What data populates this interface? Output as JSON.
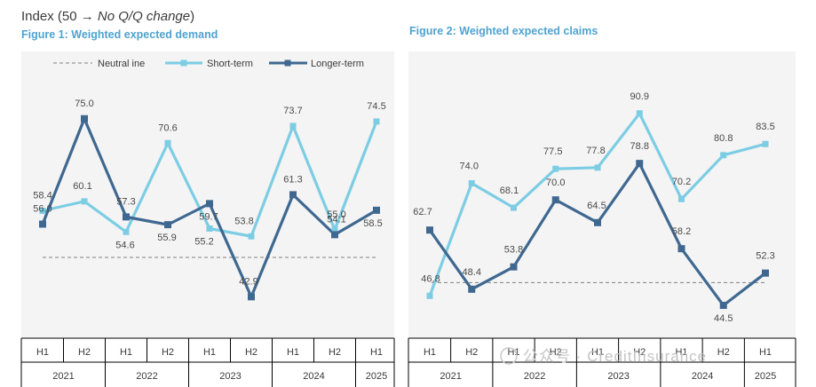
{
  "header": {
    "prefix": "Index (50 → ",
    "italic": "No Q/Q change",
    "suffix": ")"
  },
  "colors": {
    "short_term": "#7ccde4",
    "longer_term": "#3f6891",
    "neutral": "#808080",
    "panel": "#f4f4f4",
    "title": "#4ea3d0"
  },
  "legend": {
    "neutral": "Neutral ine",
    "short": "Short-term",
    "longer": "Longer-term"
  },
  "watermark": "公众号 · CreditInsurance",
  "chart_data": [
    {
      "type": "line",
      "title": "Figure 1: Weighted expected demand",
      "categories": [
        "2021 H1",
        "2021 H2",
        "2022 H1",
        "2022 H2",
        "2023 H1",
        "2023 H2",
        "2024 H1",
        "2024 H2",
        "2025 H1"
      ],
      "half_labels": [
        "H1",
        "H2",
        "H1",
        "H2",
        "H1",
        "H2",
        "H1",
        "H2",
        "H1"
      ],
      "year_labels": [
        "2021",
        "2022",
        "2023",
        "2024",
        "2025"
      ],
      "neutral": 50,
      "ylim": [
        38,
        82
      ],
      "series": [
        {
          "name": "Short-term",
          "values": [
            58.4,
            60.1,
            54.6,
            70.6,
            55.2,
            53.8,
            73.7,
            55.0,
            74.5
          ]
        },
        {
          "name": "Longer-term",
          "values": [
            56.0,
            75.0,
            57.3,
            55.9,
            59.7,
            42.9,
            61.3,
            54.1,
            58.5
          ]
        }
      ]
    },
    {
      "type": "line",
      "title": "Figure 2: Weighted expected claims",
      "categories": [
        "2021 H1",
        "2021 H2",
        "2022 H1",
        "2022 H2",
        "2023 H1",
        "2023 H2",
        "2024 H1",
        "2024 H2",
        "2025 H1"
      ],
      "half_labels": [
        "H1",
        "H2",
        "H1",
        "H2",
        "H1",
        "H2",
        "H1",
        "H2",
        "H1"
      ],
      "year_labels": [
        "2021",
        "2022",
        "2023",
        "2024",
        "2025"
      ],
      "neutral": 50,
      "ylim": [
        40,
        99
      ],
      "series": [
        {
          "name": "Short-term",
          "values": [
            46.8,
            74.0,
            68.1,
            77.5,
            77.8,
            90.9,
            70.2,
            80.8,
            83.5
          ]
        },
        {
          "name": "Longer-term",
          "values": [
            62.7,
            48.4,
            53.8,
            70.0,
            64.5,
            78.8,
            58.2,
            44.5,
            52.3
          ]
        }
      ]
    }
  ]
}
